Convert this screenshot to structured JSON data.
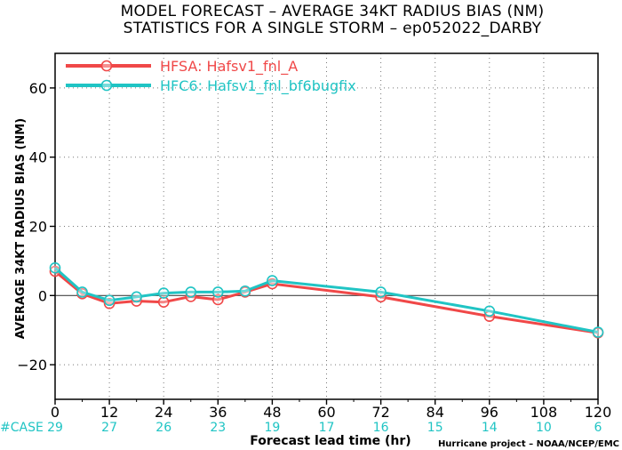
{
  "title_line1": "MODEL FORECAST – AVERAGE 34KT RADIUS BIAS (NM)",
  "title_line2": "STATISTICS FOR A SINGLE STORM – ep052022_DARBY",
  "credit": "Hurricane project – NOAA/NCEP/EMC",
  "case_label": "#CASE",
  "colors": {
    "hfsa": "#f04848",
    "hfc6": "#20c4c4",
    "case_text": "#20c4c4"
  },
  "chart_data": {
    "type": "line",
    "title": "MODEL FORECAST – AVERAGE 34KT RADIUS BIAS (NM)\nSTATISTICS FOR A SINGLE STORM – ep052022_DARBY",
    "xlabel": "Forecast lead time (hr)",
    "ylabel": "AVERAGE 34KT RADIUS BIAS (NM)",
    "xlim": [
      0,
      120
    ],
    "ylim": [
      -30,
      70
    ],
    "xticks": [
      0,
      12,
      24,
      36,
      48,
      60,
      72,
      84,
      96,
      108,
      120
    ],
    "yticks": [
      -20,
      0,
      20,
      40,
      60
    ],
    "grid": true,
    "legend_position": "top-left",
    "case_counts": [
      {
        "x": 0,
        "n": "29"
      },
      {
        "x": 12,
        "n": "27"
      },
      {
        "x": 24,
        "n": "26"
      },
      {
        "x": 36,
        "n": "23"
      },
      {
        "x": 48,
        "n": "19"
      },
      {
        "x": 60,
        "n": "17"
      },
      {
        "x": 72,
        "n": "16"
      },
      {
        "x": 84,
        "n": "15"
      },
      {
        "x": 96,
        "n": "14"
      },
      {
        "x": 108,
        "n": "10"
      },
      {
        "x": 120,
        "n": "6"
      }
    ],
    "series": [
      {
        "name": "HFSA: Hafsv1_fnl_A",
        "color": "#f04848",
        "points": [
          [
            0,
            7.0
          ],
          [
            6,
            0.5
          ],
          [
            12,
            -2.3
          ],
          [
            18,
            -1.6
          ],
          [
            24,
            -1.9
          ],
          [
            30,
            -0.3
          ],
          [
            36,
            -1.2
          ],
          [
            42,
            1.0
          ],
          [
            48,
            3.4
          ],
          [
            72,
            -0.4
          ],
          [
            96,
            -6.0
          ],
          [
            120,
            -10.8
          ]
        ]
      },
      {
        "name": "HFC6: Hafsv1_fnl_bf6bugfix",
        "color": "#20c4c4",
        "points": [
          [
            0,
            8.0
          ],
          [
            6,
            1.0
          ],
          [
            12,
            -1.4
          ],
          [
            18,
            -0.4
          ],
          [
            24,
            0.7
          ],
          [
            30,
            1.0
          ],
          [
            36,
            1.0
          ],
          [
            42,
            1.3
          ],
          [
            48,
            4.3
          ],
          [
            72,
            1.0
          ],
          [
            96,
            -4.5
          ],
          [
            120,
            -10.6
          ]
        ]
      }
    ]
  }
}
